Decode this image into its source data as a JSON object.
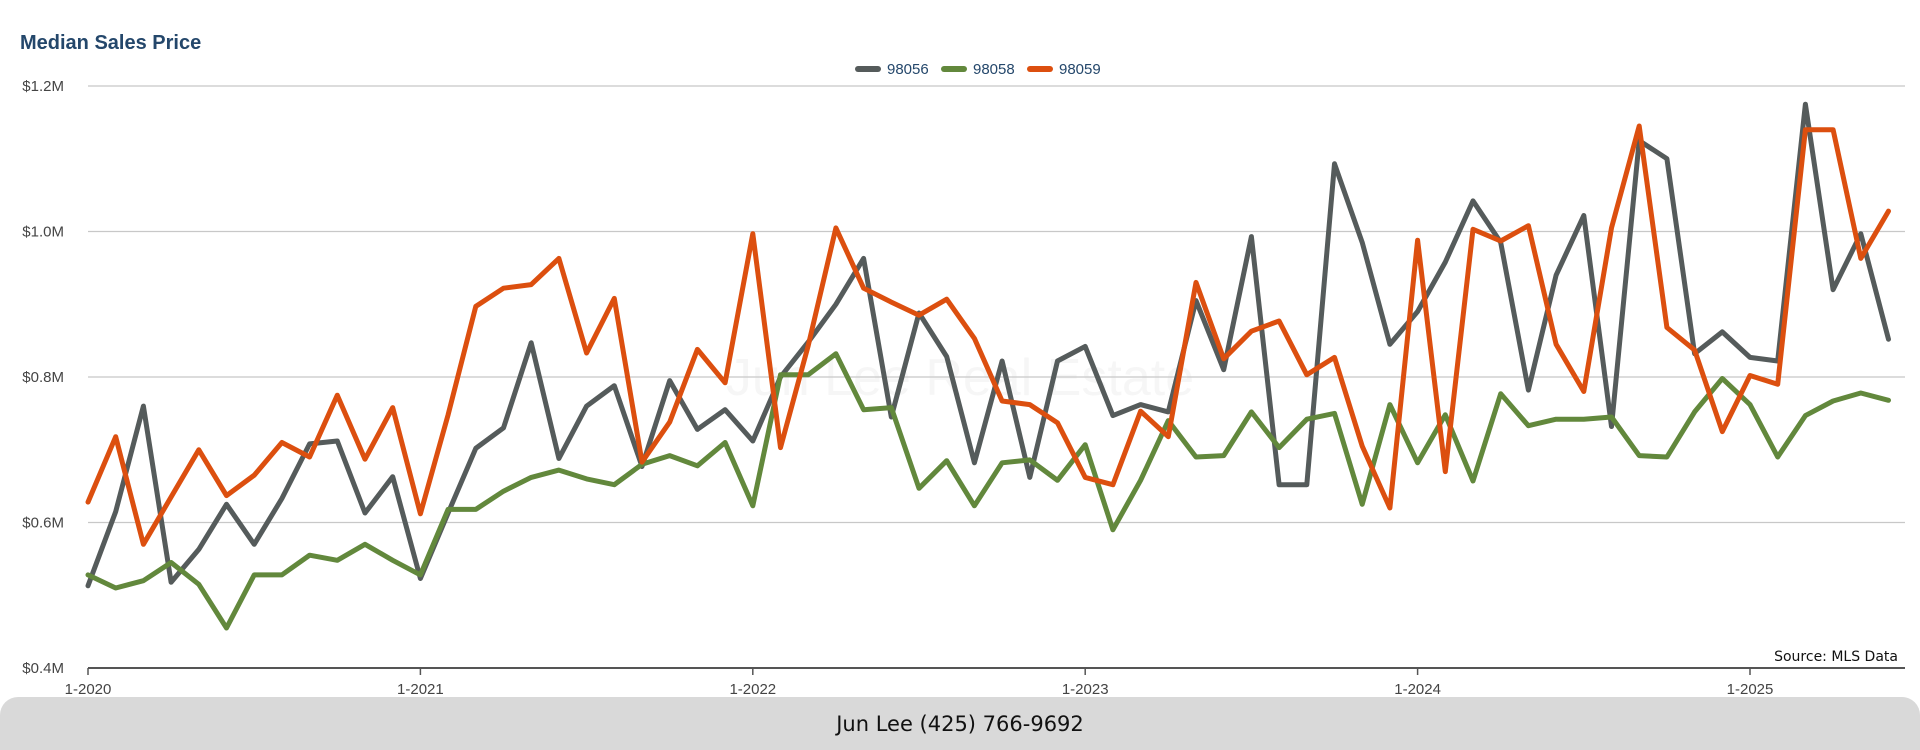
{
  "chart_data": {
    "type": "line",
    "title": "Median Sales Price",
    "xlabel": "",
    "ylabel": "",
    "ylim": [
      0.4,
      1.2
    ],
    "y_unit": "$M",
    "y_ticks": [
      "$0.4M",
      "$0.6M",
      "$0.8M",
      "$1.0M",
      "$1.2M"
    ],
    "x_ticks": [
      "1-2020",
      "1-2021",
      "1-2022",
      "1-2023",
      "1-2024",
      "1-2025"
    ],
    "x": [
      "2020-01",
      "2020-02",
      "2020-03",
      "2020-04",
      "2020-05",
      "2020-06",
      "2020-07",
      "2020-08",
      "2020-09",
      "2020-10",
      "2020-11",
      "2020-12",
      "2021-01",
      "2021-02",
      "2021-03",
      "2021-04",
      "2021-05",
      "2021-06",
      "2021-07",
      "2021-08",
      "2021-09",
      "2021-10",
      "2021-11",
      "2021-12",
      "2022-01",
      "2022-02",
      "2022-03",
      "2022-04",
      "2022-05",
      "2022-06",
      "2022-07",
      "2022-08",
      "2022-09",
      "2022-10",
      "2022-11",
      "2022-12",
      "2023-01",
      "2023-02",
      "2023-03",
      "2023-04",
      "2023-05",
      "2023-06",
      "2023-07",
      "2023-08",
      "2023-09",
      "2023-10",
      "2023-11",
      "2023-12",
      "2024-01",
      "2024-02",
      "2024-03",
      "2024-04",
      "2024-05",
      "2024-06",
      "2024-07",
      "2024-08",
      "2024-09",
      "2024-10",
      "2024-11",
      "2024-12",
      "2025-01",
      "2025-02",
      "2025-03",
      "2025-04",
      "2025-05",
      "2025-06"
    ],
    "series": [
      {
        "name": "98056",
        "color": "#555b5b",
        "values": [
          0.513,
          0.615,
          0.76,
          0.518,
          0.563,
          0.625,
          0.57,
          0.633,
          0.708,
          0.712,
          0.613,
          0.663,
          0.523,
          0.613,
          0.702,
          0.73,
          0.847,
          0.688,
          0.76,
          0.788,
          0.677,
          0.795,
          0.728,
          0.755,
          0.712,
          0.8,
          0.848,
          0.9,
          0.963,
          0.745,
          0.888,
          0.828,
          0.682,
          0.822,
          0.662,
          0.822,
          0.842,
          0.747,
          0.762,
          0.752,
          0.905,
          0.81,
          0.993,
          0.652,
          0.652,
          1.093,
          0.985,
          0.845,
          0.89,
          0.958,
          1.042,
          0.985,
          0.782,
          0.94,
          1.022,
          0.732,
          1.125,
          1.1,
          0.832,
          0.862,
          0.827,
          0.822,
          1.175,
          0.92,
          0.997,
          0.852
        ]
      },
      {
        "name": "98058",
        "color": "#62883c",
        "values": [
          0.528,
          0.51,
          0.52,
          0.545,
          0.515,
          0.455,
          0.528,
          0.528,
          0.555,
          0.548,
          0.57,
          0.548,
          0.528,
          0.618,
          0.618,
          0.643,
          0.662,
          0.672,
          0.66,
          0.652,
          0.68,
          0.692,
          0.678,
          0.71,
          0.623,
          0.803,
          0.803,
          0.832,
          0.755,
          0.758,
          0.647,
          0.685,
          0.623,
          0.682,
          0.686,
          0.658,
          0.707,
          0.59,
          0.658,
          0.74,
          0.69,
          0.692,
          0.752,
          0.703,
          0.742,
          0.75,
          0.625,
          0.762,
          0.682,
          0.748,
          0.657,
          0.777,
          0.733,
          0.742,
          0.742,
          0.745,
          0.692,
          0.69,
          0.752,
          0.798,
          0.762,
          0.69,
          0.747,
          0.767,
          0.778,
          0.768
        ]
      },
      {
        "name": "98059",
        "color": "#dc4f0f",
        "values": [
          0.628,
          0.718,
          0.57,
          0.635,
          0.7,
          0.637,
          0.665,
          0.71,
          0.69,
          0.775,
          0.687,
          0.758,
          0.612,
          0.748,
          0.897,
          0.922,
          0.927,
          0.963,
          0.833,
          0.908,
          0.683,
          0.738,
          0.838,
          0.792,
          0.997,
          0.703,
          0.843,
          1.005,
          0.922,
          0.903,
          0.885,
          0.907,
          0.853,
          0.767,
          0.762,
          0.737,
          0.662,
          0.652,
          0.753,
          0.718,
          0.93,
          0.825,
          0.863,
          0.877,
          0.803,
          0.827,
          0.705,
          0.62,
          0.988,
          0.67,
          1.003,
          0.987,
          1.008,
          0.845,
          0.78,
          1.005,
          1.145,
          0.868,
          0.837,
          0.725,
          0.802,
          0.79,
          1.14,
          1.14,
          0.963,
          1.028
        ]
      }
    ],
    "legend_position": "top-center",
    "grid": true
  },
  "watermark": "Jun Lee Real Estate",
  "source": "Source: MLS Data",
  "footer": {
    "text": "Jun Lee (425) 766-9692"
  }
}
